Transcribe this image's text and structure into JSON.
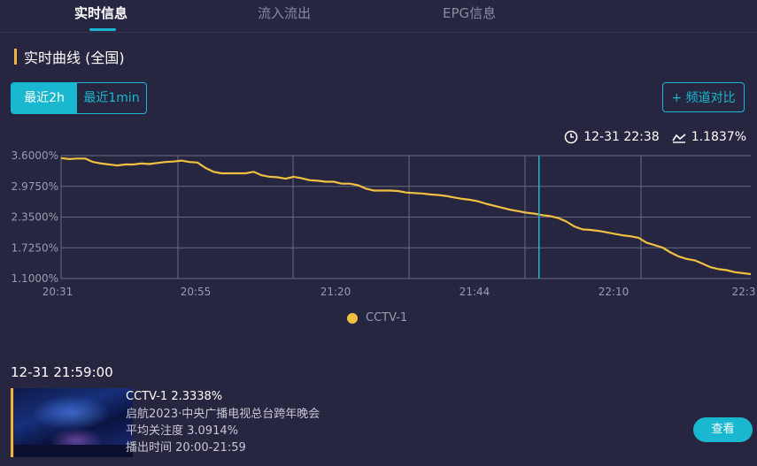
{
  "tabs": [
    {
      "label": "实时信息",
      "active": true
    },
    {
      "label": "流入流出",
      "active": false
    },
    {
      "label": "EPG信息",
      "active": false
    }
  ],
  "section": {
    "title": "实时曲线 (全国)"
  },
  "range_toggle": {
    "options": [
      "最近2h",
      "最近1min"
    ],
    "selected": "最近2h"
  },
  "compare_button": "+ 频道对比",
  "readout": {
    "time": "12-31 22:38",
    "value": "1.1837%",
    "icons": [
      "clock-icon",
      "trend-icon"
    ]
  },
  "colors": {
    "accent": "#19b8d0",
    "line": "#f0b43c",
    "background": "#262640"
  },
  "chart_data": {
    "type": "line",
    "yticks": [
      "3.6000%",
      "2.9750%",
      "2.3500%",
      "1.7250%",
      "1.1000%"
    ],
    "xticks": [
      "20:31",
      "20:55",
      "21:20",
      "21:44",
      "22:10",
      "22:3"
    ],
    "ylim": [
      1.1,
      3.6
    ],
    "grid": true,
    "legend_position": "bottom",
    "series": [
      {
        "name": "CCTV-1",
        "color": "#f0c040",
        "x_start": "20:31",
        "x_end": "22:38",
        "values": [
          3.55,
          3.53,
          3.54,
          3.54,
          3.47,
          3.44,
          3.42,
          3.4,
          3.42,
          3.42,
          3.44,
          3.43,
          3.45,
          3.47,
          3.48,
          3.5,
          3.47,
          3.46,
          3.35,
          3.27,
          3.24,
          3.24,
          3.24,
          3.24,
          3.27,
          3.2,
          3.17,
          3.16,
          3.13,
          3.17,
          3.14,
          3.1,
          3.09,
          3.07,
          3.07,
          3.03,
          3.03,
          3.0,
          2.93,
          2.89,
          2.89,
          2.89,
          2.88,
          2.85,
          2.84,
          2.83,
          2.81,
          2.8,
          2.78,
          2.75,
          2.72,
          2.7,
          2.67,
          2.62,
          2.58,
          2.54,
          2.5,
          2.47,
          2.44,
          2.42,
          2.39,
          2.37,
          2.33,
          2.26,
          2.16,
          2.1,
          2.09,
          2.07,
          2.04,
          2.01,
          1.98,
          1.96,
          1.93,
          1.83,
          1.78,
          1.73,
          1.63,
          1.55,
          1.5,
          1.47,
          1.4,
          1.33,
          1.29,
          1.27,
          1.23,
          1.21,
          1.19
        ]
      }
    ],
    "cursor_time": "21:59"
  },
  "legend": {
    "label": "CCTV-1"
  },
  "program": {
    "timestamp": "12-31 21:59:00",
    "channel_line": "CCTV-1 2.3338%",
    "name": "启航2023·中央广播电视总台跨年晚会",
    "avg": "平均关注度 3.0914%",
    "airtime": "播出时间 20:00-21:59",
    "view_button": "查看"
  }
}
